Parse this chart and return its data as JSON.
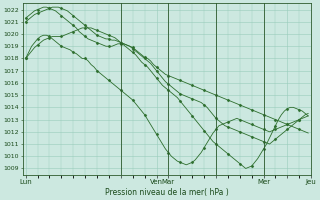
{
  "background_color": "#cce8e0",
  "grid_color": "#99ccbb",
  "line_color": "#2d6e2d",
  "marker_color": "#2d6e2d",
  "xlabel": "Pression niveau de la mer( hPa )",
  "ylim": [
    1008.5,
    1022.5
  ],
  "yticks": [
    1009,
    1010,
    1011,
    1012,
    1013,
    1014,
    1015,
    1016,
    1017,
    1018,
    1019,
    1020,
    1021,
    1022
  ],
  "xtick_positions": [
    0,
    32,
    44,
    48,
    64,
    80,
    88,
    96
  ],
  "xtick_labels": [
    "Lun",
    "",
    "Ven",
    "Mar",
    "",
    "Mer",
    "",
    "Jeu"
  ],
  "vlines": [
    32,
    48,
    64,
    80,
    96
  ],
  "series": [
    [
      1018.0,
      1018.5,
      1019.0,
      1019.3,
      1019.6,
      1019.8,
      1019.9,
      1019.9,
      1019.8,
      1019.6,
      1019.4,
      1019.2,
      1019.0,
      1018.9,
      1018.8,
      1018.7,
      1018.5,
      1018.4,
      1018.2,
      1018.0,
      1018.0,
      1017.8,
      1017.5,
      1017.3,
      1017.0,
      1016.8,
      1016.6,
      1016.4,
      1016.2,
      1016.0,
      1015.8,
      1015.6,
      1015.4,
      1015.2,
      1015.0,
      1014.8,
      1014.6,
      1014.3,
      1014.0,
      1013.7,
      1013.4,
      1013.0,
      1012.6,
      1012.2,
      1011.8,
      1011.4,
      1011.0,
      1010.6,
      1010.3,
      1010.0,
      1009.8,
      1009.6,
      1009.5,
      1009.4,
      1009.3,
      1009.4,
      1009.5,
      1009.7,
      1010.0,
      1010.3,
      1010.7,
      1011.1,
      1011.5,
      1011.9,
      1012.2,
      1012.5,
      1012.6,
      1012.7,
      1012.8,
      1012.9,
      1013.0,
      1013.1,
      1013.0,
      1012.9,
      1012.8,
      1012.7,
      1012.6,
      1012.5,
      1012.4,
      1012.3,
      1012.2,
      1012.1,
      1012.0,
      1012.1,
      1012.2,
      1012.3,
      1012.4,
      1012.5,
      1012.6,
      1012.7,
      1012.8,
      1012.9,
      1013.0,
      1013.1,
      1013.2,
      1013.3
    ],
    [
      1021.0,
      1021.2,
      1021.4,
      1021.6,
      1021.7,
      1021.8,
      1021.9,
      1022.0,
      1022.1,
      1022.2,
      1022.2,
      1022.2,
      1022.1,
      1022.0,
      1021.9,
      1021.7,
      1021.5,
      1021.3,
      1021.1,
      1020.9,
      1020.7,
      1020.5,
      1020.3,
      1020.1,
      1019.9,
      1019.8,
      1019.7,
      1019.6,
      1019.6,
      1019.5,
      1019.5,
      1019.4,
      1019.3,
      1019.2,
      1019.1,
      1019.0,
      1018.9,
      1018.7,
      1018.5,
      1018.3,
      1018.1,
      1018.0,
      1017.8,
      1017.5,
      1017.3,
      1017.1,
      1016.9,
      1016.7,
      1016.6,
      1016.5,
      1016.4,
      1016.3,
      1016.2,
      1016.1,
      1016.0,
      1015.9,
      1015.8,
      1015.7,
      1015.6,
      1015.5,
      1015.4,
      1015.3,
      1015.2,
      1015.1,
      1015.0,
      1014.9,
      1014.8,
      1014.7,
      1014.6,
      1014.5,
      1014.4,
      1014.3,
      1014.2,
      1014.1,
      1014.0,
      1013.9,
      1013.8,
      1013.7,
      1013.6,
      1013.5,
      1013.4,
      1013.3,
      1013.2,
      1013.1,
      1013.0,
      1012.9,
      1012.8,
      1012.7,
      1012.6,
      1012.5,
      1012.4,
      1012.3,
      1012.2,
      1012.1,
      1012.0,
      1011.9
    ],
    [
      1021.3,
      1021.5,
      1021.7,
      1021.9,
      1022.0,
      1022.1,
      1022.2,
      1022.2,
      1022.1,
      1022.0,
      1021.9,
      1021.7,
      1021.5,
      1021.3,
      1021.1,
      1020.9,
      1020.7,
      1020.5,
      1020.2,
      1020.0,
      1019.8,
      1019.6,
      1019.5,
      1019.4,
      1019.3,
      1019.2,
      1019.1,
      1019.0,
      1019.0,
      1019.0,
      1019.1,
      1019.2,
      1019.2,
      1019.2,
      1019.1,
      1019.0,
      1018.8,
      1018.6,
      1018.4,
      1018.2,
      1018.0,
      1017.8,
      1017.6,
      1017.3,
      1017.0,
      1016.7,
      1016.4,
      1016.1,
      1015.9,
      1015.7,
      1015.5,
      1015.3,
      1015.1,
      1015.0,
      1014.9,
      1014.8,
      1014.7,
      1014.6,
      1014.5,
      1014.4,
      1014.2,
      1014.0,
      1013.7,
      1013.4,
      1013.1,
      1012.9,
      1012.7,
      1012.5,
      1012.4,
      1012.3,
      1012.2,
      1012.1,
      1012.0,
      1011.9,
      1011.8,
      1011.7,
      1011.6,
      1011.5,
      1011.4,
      1011.3,
      1011.2,
      1011.1,
      1011.0,
      1011.2,
      1011.4,
      1011.6,
      1011.8,
      1012.0,
      1012.2,
      1012.4,
      1012.6,
      1012.8,
      1013.0,
      1013.2,
      1013.4,
      1013.5
    ],
    [
      1018.0,
      1018.3,
      1018.6,
      1018.9,
      1019.1,
      1019.3,
      1019.5,
      1019.6,
      1019.7,
      1019.8,
      1019.8,
      1019.8,
      1019.8,
      1019.9,
      1020.0,
      1020.1,
      1020.2,
      1020.3,
      1020.4,
      1020.5,
      1020.5,
      1020.5,
      1020.5,
      1020.4,
      1020.3,
      1020.2,
      1020.1,
      1020.0,
      1019.9,
      1019.8,
      1019.7,
      1019.5,
      1019.3,
      1019.1,
      1018.9,
      1018.7,
      1018.5,
      1018.3,
      1018.0,
      1017.7,
      1017.5,
      1017.3,
      1017.0,
      1016.7,
      1016.4,
      1016.1,
      1015.8,
      1015.6,
      1015.4,
      1015.2,
      1015.0,
      1014.8,
      1014.5,
      1014.2,
      1013.9,
      1013.6,
      1013.3,
      1013.0,
      1012.7,
      1012.4,
      1012.1,
      1011.8,
      1011.5,
      1011.2,
      1011.0,
      1010.8,
      1010.6,
      1010.4,
      1010.2,
      1010.0,
      1009.8,
      1009.6,
      1009.4,
      1009.2,
      1009.0,
      1009.1,
      1009.2,
      1009.5,
      1009.8,
      1010.2,
      1010.6,
      1011.0,
      1011.5,
      1012.0,
      1012.5,
      1013.0,
      1013.4,
      1013.7,
      1013.9,
      1014.0,
      1014.0,
      1013.9,
      1013.8,
      1013.7,
      1013.5,
      1013.3
    ]
  ]
}
